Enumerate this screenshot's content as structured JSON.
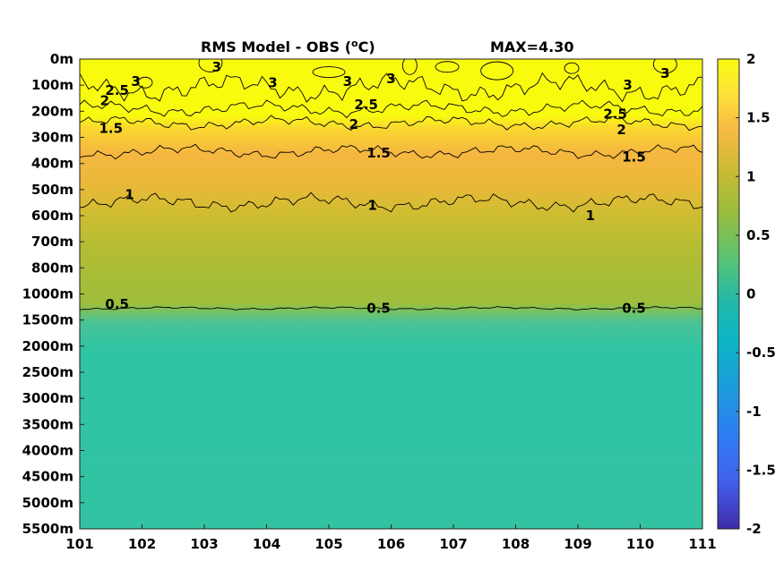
{
  "chart_data": {
    "type": "heatmap",
    "title_left": "RMS Model - OBS (",
    "title_unit_sup": "o",
    "title_unit": "C)",
    "title_right": "MAX=4.30",
    "x_ticks": [
      "101",
      "102",
      "103",
      "104",
      "105",
      "106",
      "107",
      "108",
      "109",
      "110",
      "111"
    ],
    "xlim": [
      101,
      111
    ],
    "y_ticks": [
      "0m",
      "100m",
      "200m",
      "300m",
      "400m",
      "500m",
      "600m",
      "700m",
      "800m",
      "1000m",
      "1500m",
      "2000m",
      "2500m",
      "3000m",
      "3500m",
      "4000m",
      "4500m",
      "5000m",
      "5500m"
    ],
    "y_scale": "categorical depth levels (index axis)",
    "colorbar": {
      "range": [
        -2,
        2
      ],
      "ticks": [
        "2",
        "1.5",
        "1",
        "0.5",
        "0",
        "-0.5",
        "-1",
        "-1.5",
        "-2"
      ],
      "colormap": "parula"
    },
    "field_profile_by_depth_level": [
      {
        "level": 0,
        "value": 2.0
      },
      {
        "level": 1,
        "value": 2.0
      },
      {
        "level": 2,
        "value": 1.95
      },
      {
        "level": 3,
        "value": 1.55
      },
      {
        "level": 4,
        "value": 1.35
      },
      {
        "level": 5,
        "value": 1.15
      },
      {
        "level": 6,
        "value": 1.0
      },
      {
        "level": 7,
        "value": 0.92
      },
      {
        "level": 8,
        "value": 0.85
      },
      {
        "level": 9,
        "value": 0.72
      },
      {
        "level": 10,
        "value": 0.5
      },
      {
        "level": 11,
        "value": 0.45
      },
      {
        "level": 12,
        "value": 0.42
      },
      {
        "level": 18,
        "value": 0.42
      }
    ],
    "contours": [
      {
        "level": "3",
        "labels": [
          {
            "x": 103.2,
            "y_level": 0.3
          },
          {
            "x": 104.1,
            "y_level": 0.9
          },
          {
            "x": 105.3,
            "y_level": 0.85
          },
          {
            "x": 106.0,
            "y_level": 0.75
          },
          {
            "x": 109.8,
            "y_level": 1.0
          },
          {
            "x": 110.4,
            "y_level": 0.55
          },
          {
            "x": 101.9,
            "y_level": 0.85
          }
        ]
      },
      {
        "level": "2.5",
        "labels": [
          {
            "x": 101.6,
            "y_level": 1.2
          },
          {
            "x": 105.6,
            "y_level": 1.75
          },
          {
            "x": 109.6,
            "y_level": 2.1
          }
        ]
      },
      {
        "level": "2",
        "labels": [
          {
            "x": 101.4,
            "y_level": 1.6
          },
          {
            "x": 105.4,
            "y_level": 2.5
          },
          {
            "x": 109.7,
            "y_level": 2.7
          }
        ]
      },
      {
        "level": "1.5",
        "labels": [
          {
            "x": 101.5,
            "y_level": 2.65
          },
          {
            "x": 105.8,
            "y_level": 3.6
          },
          {
            "x": 109.9,
            "y_level": 3.75
          }
        ]
      },
      {
        "level": "1",
        "labels": [
          {
            "x": 101.8,
            "y_level": 5.2
          },
          {
            "x": 105.7,
            "y_level": 5.6
          },
          {
            "x": 109.2,
            "y_level": 6.0
          }
        ]
      },
      {
        "level": "0.5",
        "labels": [
          {
            "x": 101.6,
            "y_level": 9.4
          },
          {
            "x": 105.8,
            "y_level": 9.55
          },
          {
            "x": 109.9,
            "y_level": 9.55
          }
        ]
      }
    ]
  }
}
